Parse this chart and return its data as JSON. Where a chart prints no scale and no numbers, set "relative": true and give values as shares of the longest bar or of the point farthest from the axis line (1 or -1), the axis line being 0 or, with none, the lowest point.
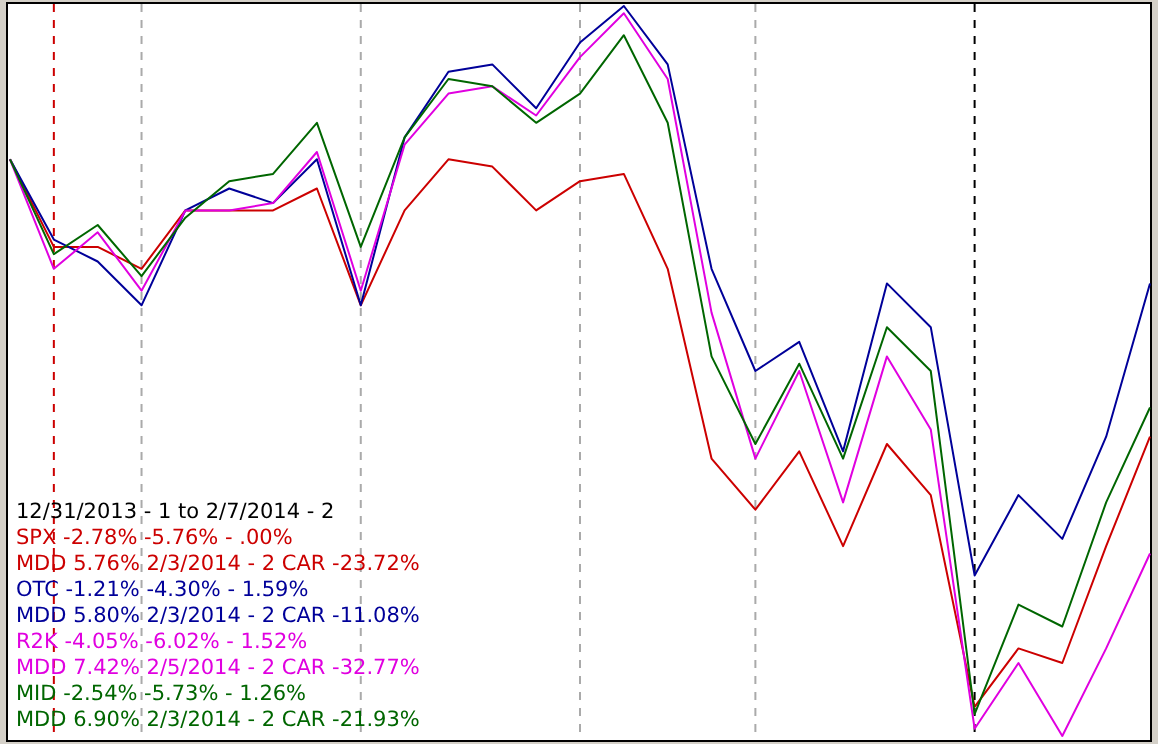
{
  "chart_data": {
    "type": "line",
    "title": "12/31/2013 - 1 to 2/7/2014 - 2",
    "relative": true,
    "legend": "bottom left",
    "marker": "none",
    "line_style": "solid",
    "categories": [
      null,
      null,
      null,
      null,
      null,
      null,
      null,
      null,
      null,
      null,
      null,
      null,
      null,
      null,
      null,
      null,
      null,
      null,
      null,
      null,
      null,
      null,
      null,
      null,
      null,
      null,
      null
    ],
    "series": [
      {
        "name": "SPX -2.78% -5.76% - .00%\nMDD 5.76% 2/3/2014 - 2 CAR -23.72%",
        "color": "#cc0000",
        "values": [
          0.79,
          0.67,
          0.67,
          0.64,
          0.72,
          0.72,
          0.72,
          0.75,
          0.59,
          0.72,
          0.79,
          0.78,
          0.72,
          0.76,
          0.77,
          0.64,
          0.38,
          0.31,
          0.39,
          0.26,
          0.4,
          0.33,
          0.04,
          0.12,
          0.1,
          0.26,
          0.41
        ]
      },
      {
        "name": "OTC -1.21% -4.30% - 1.59%\nMDD 5.80% 2/3/2014 - 2 CAR -11.08%",
        "color": "#000099",
        "values": [
          0.79,
          0.68,
          0.65,
          0.59,
          0.72,
          0.75,
          0.73,
          0.79,
          0.59,
          0.82,
          0.91,
          0.92,
          0.86,
          0.95,
          1,
          0.92,
          0.64,
          0.5,
          0.54,
          0.39,
          0.62,
          0.56,
          0.22,
          0.33,
          0.27,
          0.41,
          0.62
        ]
      },
      {
        "name": "R2K -4.05% -6.02% - 1.52%\nMDD 7.42% 2/5/2014 - 2 CAR -32.77%",
        "color": "#e000e0",
        "values": [
          0.79,
          0.64,
          0.69,
          0.61,
          0.72,
          0.72,
          0.73,
          0.8,
          0.61,
          0.81,
          0.88,
          0.89,
          0.85,
          0.93,
          0.99,
          0.9,
          0.58,
          0.38,
          0.5,
          0.32,
          0.52,
          0.42,
          0.01,
          0.1,
          0,
          0.12,
          0.25
        ]
      },
      {
        "name": "MID -2.54% -5.73% - 1.26%\nMDD 6.90% 2/3/2014 - 2 CAR -21.93%",
        "color": "#006600",
        "values": [
          0.79,
          0.66,
          0.7,
          0.63,
          0.71,
          0.76,
          0.77,
          0.84,
          0.67,
          0.82,
          0.9,
          0.89,
          0.84,
          0.88,
          0.96,
          0.84,
          0.52,
          0.4,
          0.51,
          0.38,
          0.56,
          0.5,
          0.03,
          0.18,
          0.15,
          0.32,
          0.45
        ]
      }
    ],
    "grid": "x"
  }
}
